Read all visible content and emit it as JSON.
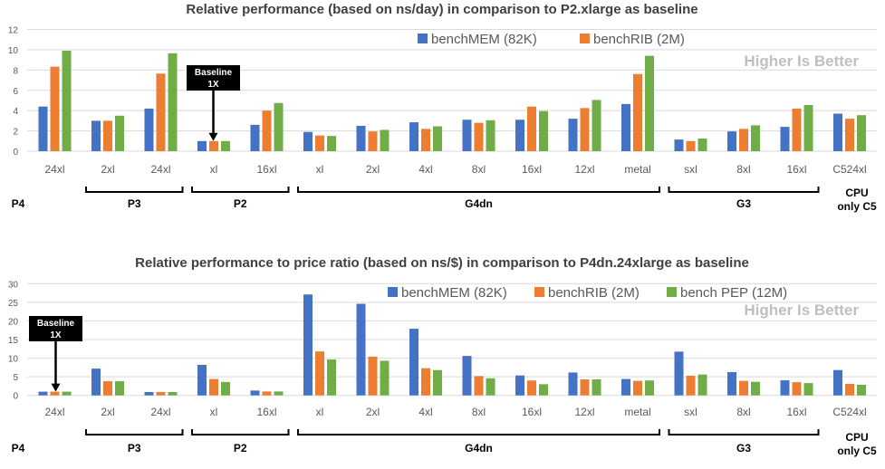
{
  "colors": {
    "benchMEM": "#4472c4",
    "benchRIB": "#ed7d31",
    "benchPEP": "#70ad47"
  },
  "chart_data": [
    {
      "type": "bar",
      "title": "Relative performance (based on ns/day) in comparison to P2.xlarge as baseline",
      "annotation": "Higher Is Better",
      "baseline_label": [
        "Baseline",
        "1X"
      ],
      "categories": [
        "24xl",
        "2xl",
        "24xl",
        "xl",
        "16xl",
        "xl",
        "2xl",
        "4xl",
        "8xl",
        "16xl",
        "12xl",
        "metal",
        "sxl",
        "8xl",
        "16xl",
        "C524xl"
      ],
      "groups": [
        {
          "label": "P4",
          "span": [
            0,
            0
          ],
          "bracket": false
        },
        {
          "label": "P3",
          "span": [
            1,
            2
          ],
          "bracket": true
        },
        {
          "label": "P2",
          "span": [
            3,
            4
          ],
          "bracket": true
        },
        {
          "label": "G4dn",
          "span": [
            5,
            11
          ],
          "bracket": true
        },
        {
          "label": "G3",
          "span": [
            12,
            14
          ],
          "bracket": true
        },
        {
          "label": "CPU only C5",
          "lines": [
            "CPU",
            "only C5"
          ],
          "span": [
            15,
            15
          ],
          "bracket": false
        }
      ],
      "ylim": [
        0,
        12
      ],
      "yticks": [
        0,
        2,
        4,
        6,
        8,
        10,
        12
      ],
      "grid": true,
      "legend_position": "top",
      "legend": [
        "benchMEM (82K)",
        "benchRIB (2M)"
      ],
      "series": [
        {
          "name": "benchMEM (82K)",
          "color": "#4472c4",
          "values": [
            4.4,
            3.0,
            4.2,
            1.0,
            2.6,
            1.9,
            2.5,
            2.85,
            3.1,
            3.1,
            3.2,
            4.65,
            1.15,
            1.95,
            2.4,
            3.7
          ]
        },
        {
          "name": "benchRIB (2M)",
          "color": "#ed7d31",
          "values": [
            8.33,
            3.0,
            7.65,
            1.0,
            4.0,
            1.55,
            1.95,
            2.2,
            2.8,
            4.4,
            4.25,
            7.6,
            1.0,
            2.2,
            4.2,
            3.2
          ]
        },
        {
          "color": "#70ad47",
          "values": [
            9.9,
            3.5,
            9.65,
            1.0,
            4.75,
            1.5,
            2.1,
            2.45,
            3.05,
            3.95,
            5.05,
            9.4,
            1.25,
            2.55,
            4.55,
            3.55
          ]
        }
      ]
    },
    {
      "type": "bar",
      "title": "Relative performance to price ratio (based on ns/$) in comparison to P4dn.24xlarge as baseline",
      "annotation": "Higher Is Better",
      "baseline_label": [
        "Baseline",
        "1X"
      ],
      "categories": [
        "24xl",
        "2xl",
        "24xl",
        "xl",
        "16xl",
        "xl",
        "2xl",
        "4xl",
        "8xl",
        "16xl",
        "12xl",
        "metal",
        "sxl",
        "8xl",
        "16xl",
        "C524xl"
      ],
      "groups": [
        {
          "label": "P4",
          "span": [
            0,
            0
          ],
          "bracket": false
        },
        {
          "label": "P3",
          "span": [
            1,
            2
          ],
          "bracket": true
        },
        {
          "label": "P2",
          "span": [
            3,
            4
          ],
          "bracket": true
        },
        {
          "label": "G4dn",
          "span": [
            5,
            11
          ],
          "bracket": true
        },
        {
          "label": "G3",
          "span": [
            12,
            14
          ],
          "bracket": true
        },
        {
          "label": "CPU only C5",
          "lines": [
            "CPU",
            "only C5"
          ],
          "span": [
            15,
            15
          ],
          "bracket": false
        }
      ],
      "ylim": [
        0,
        30
      ],
      "yticks": [
        0,
        5,
        10,
        15,
        20,
        25,
        30
      ],
      "grid": true,
      "legend_position": "top",
      "legend": [
        "benchMEM (82K)",
        "benchRIB (2M)",
        "bench PEP (12M)"
      ],
      "series": [
        {
          "name": "benchMEM (82K)",
          "color": "#4472c4",
          "values": [
            1.0,
            7.2,
            0.9,
            8.2,
            1.3,
            27.1,
            24.6,
            17.9,
            10.6,
            5.35,
            6.15,
            4.4,
            11.75,
            6.25,
            4.05,
            6.8
          ]
        },
        {
          "name": "benchRIB (2M)",
          "color": "#ed7d31",
          "values": [
            1.0,
            3.8,
            0.9,
            4.4,
            1.05,
            11.8,
            10.4,
            7.3,
            5.2,
            4.0,
            4.3,
            3.9,
            5.3,
            3.9,
            3.55,
            3.1
          ]
        },
        {
          "name": "bench PEP (12M)",
          "color": "#70ad47",
          "values": [
            1.0,
            3.8,
            0.9,
            3.6,
            1.05,
            9.65,
            9.3,
            6.8,
            4.6,
            3.0,
            4.3,
            4.0,
            5.6,
            3.65,
            3.3,
            2.85
          ]
        }
      ]
    }
  ]
}
